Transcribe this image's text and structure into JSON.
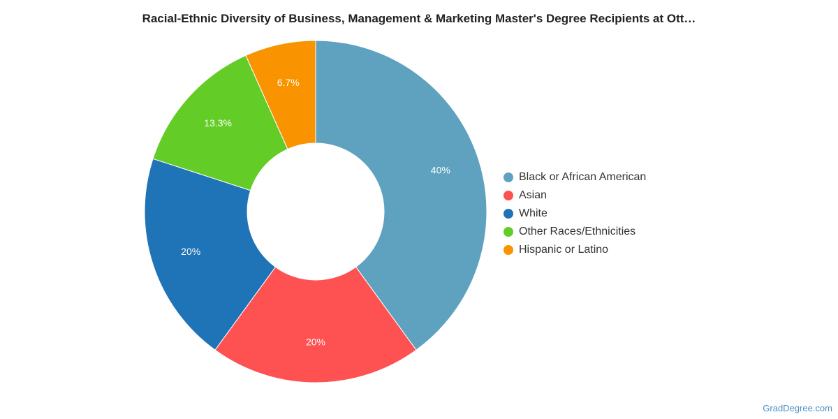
{
  "chart_data": {
    "type": "pie",
    "title": "Racial-Ethnic Diversity of Business, Management & Marketing Master's Degree Recipients at Ott…",
    "donut": true,
    "legend_position": "right",
    "slices": [
      {
        "label": "Black or African American",
        "value": 40,
        "display": "40%",
        "color": "#5fa2bf"
      },
      {
        "label": "Asian",
        "value": 20,
        "display": "20%",
        "color": "#fe5151"
      },
      {
        "label": "White",
        "value": 20,
        "display": "20%",
        "color": "#1f73b7"
      },
      {
        "label": "Other Races/Ethnicities",
        "value": 13.3,
        "display": "13.3%",
        "color": "#63cc27"
      },
      {
        "label": "Hispanic or Latino",
        "value": 6.7,
        "display": "6.7%",
        "color": "#f99400"
      }
    ]
  },
  "credit": "GradDegree.com"
}
